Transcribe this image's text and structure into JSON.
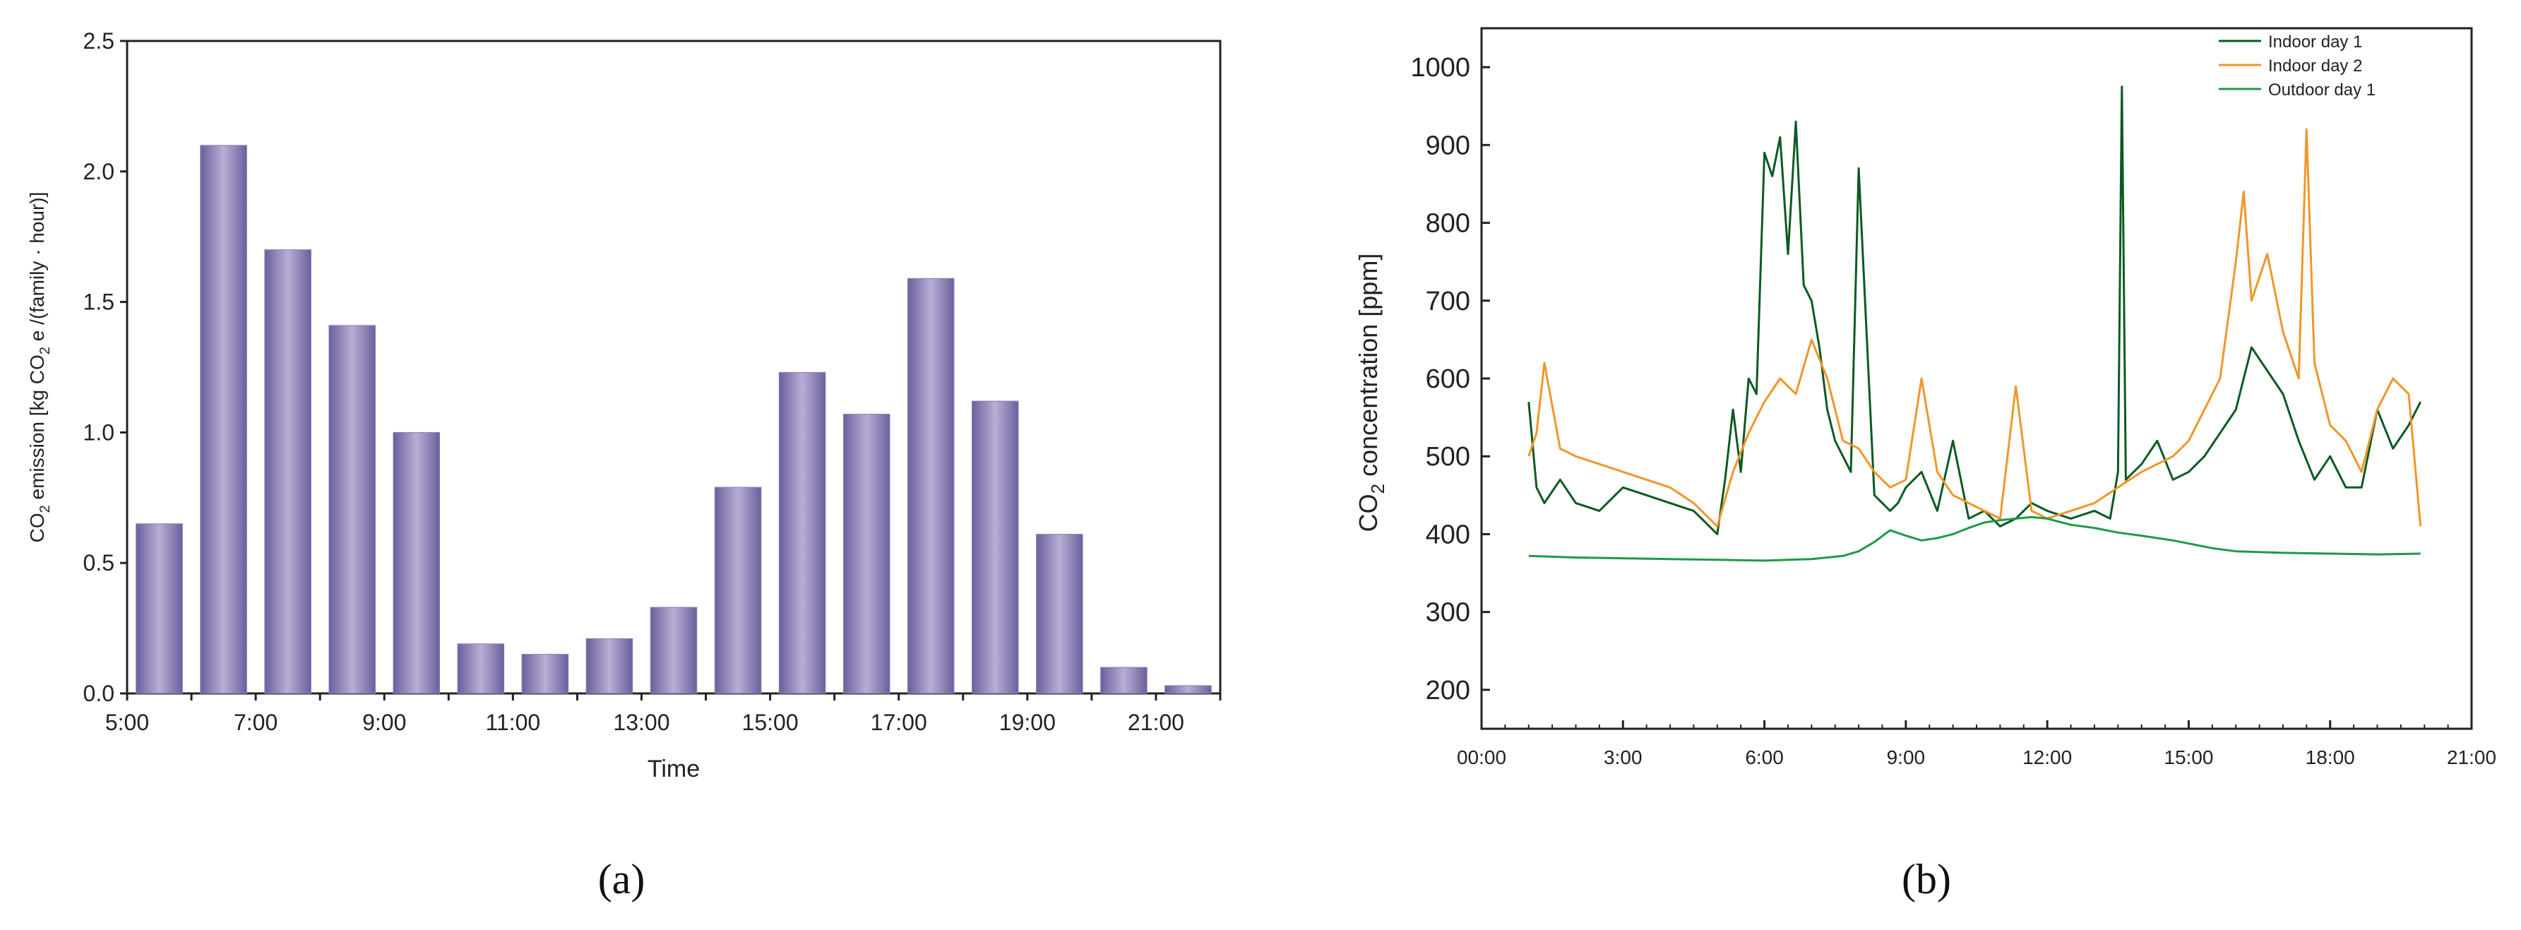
{
  "chart_data": [
    {
      "type": "bar",
      "panel_label": "(a)",
      "title": "",
      "xlabel": "Time",
      "ylabel_parts": {
        "before": "CO",
        "sub1": "2",
        "mid": " emission [kg CO",
        "sub2": "2",
        "after": " e /(family · hour)]"
      },
      "ylim": [
        0,
        2.5
      ],
      "yticks": [
        "0.0",
        "0.5",
        "1.0",
        "1.5",
        "2.0",
        "2.5"
      ],
      "xtick_labels": [
        "5:00",
        "7:00",
        "9:00",
        "11:00",
        "13:00",
        "15:00",
        "17:00",
        "19:00",
        "21:00"
      ],
      "categories": [
        "5:00",
        "6:00",
        "7:00",
        "8:00",
        "9:00",
        "10:00",
        "11:00",
        "12:00",
        "13:00",
        "14:00",
        "15:00",
        "16:00",
        "17:00",
        "18:00",
        "19:00",
        "20:00",
        "21:00"
      ],
      "values": [
        0.65,
        2.1,
        1.7,
        1.41,
        1.0,
        0.19,
        0.15,
        0.21,
        0.33,
        0.79,
        1.23,
        1.07,
        1.59,
        1.12,
        0.61,
        0.1,
        0.03
      ],
      "bar_color": "#8c7fb5",
      "grid": false
    },
    {
      "type": "line",
      "panel_label": "(b)",
      "title": "",
      "xlabel": "",
      "ylabel_parts": {
        "before": "CO",
        "sub": "2",
        "after": " concentration [ppm]"
      },
      "xlim": [
        "00:00",
        "21:00"
      ],
      "ylim": [
        150,
        1050
      ],
      "yticks": [
        "200",
        "300",
        "400",
        "500",
        "600",
        "700",
        "800",
        "900",
        "1000"
      ],
      "xticks": [
        "00:00",
        "3:00",
        "6:00",
        "9:00",
        "12:00",
        "15:00",
        "18:00",
        "21:00"
      ],
      "legend_position": "top-right",
      "grid": false,
      "series": [
        {
          "name": "Indoor day 1",
          "color": "#0b5a23",
          "x": [
            "01:00",
            "01:10",
            "01:20",
            "01:40",
            "02:00",
            "02:30",
            "03:00",
            "03:30",
            "04:00",
            "04:30",
            "04:50",
            "05:00",
            "05:10",
            "05:20",
            "05:30",
            "05:40",
            "05:50",
            "06:00",
            "06:10",
            "06:20",
            "06:30",
            "06:40",
            "06:50",
            "07:00",
            "07:10",
            "07:20",
            "07:30",
            "07:40",
            "07:50",
            "08:00",
            "08:20",
            "08:40",
            "08:50",
            "09:00",
            "09:20",
            "09:40",
            "10:00",
            "10:20",
            "10:40",
            "11:00",
            "11:20",
            "11:40",
            "12:00",
            "12:30",
            "13:00",
            "13:20",
            "13:30",
            "13:35",
            "13:40",
            "14:00",
            "14:20",
            "14:40",
            "15:00",
            "15:20",
            "15:40",
            "16:00",
            "16:10",
            "16:20",
            "16:40",
            "17:00",
            "17:20",
            "17:40",
            "18:00",
            "18:20",
            "18:40",
            "19:00",
            "19:20",
            "19:40",
            "19:55"
          ],
          "values": [
            570,
            460,
            440,
            470,
            440,
            430,
            460,
            450,
            440,
            430,
            410,
            400,
            470,
            560,
            480,
            600,
            580,
            890,
            860,
            910,
            760,
            930,
            720,
            700,
            640,
            560,
            520,
            500,
            480,
            870,
            450,
            430,
            440,
            460,
            480,
            430,
            520,
            420,
            430,
            410,
            420,
            440,
            430,
            420,
            430,
            420,
            480,
            975,
            470,
            490,
            520,
            470,
            480,
            500,
            530,
            560,
            600,
            640,
            610,
            580,
            520,
            470,
            500,
            460,
            460,
            560,
            510,
            540,
            570
          ]
        },
        {
          "name": "Indoor day 2",
          "color": "#f0962a",
          "x": [
            "01:00",
            "01:10",
            "01:20",
            "01:40",
            "02:00",
            "02:30",
            "03:00",
            "03:30",
            "04:00",
            "04:30",
            "04:50",
            "05:00",
            "05:20",
            "05:40",
            "06:00",
            "06:20",
            "06:40",
            "07:00",
            "07:20",
            "07:40",
            "08:00",
            "08:20",
            "08:40",
            "09:00",
            "09:20",
            "09:40",
            "10:00",
            "10:20",
            "10:40",
            "11:00",
            "11:20",
            "11:40",
            "12:00",
            "12:30",
            "13:00",
            "13:30",
            "14:00",
            "14:20",
            "14:40",
            "15:00",
            "15:20",
            "15:40",
            "16:00",
            "16:10",
            "16:20",
            "16:40",
            "17:00",
            "17:20",
            "17:30",
            "17:40",
            "18:00",
            "18:20",
            "18:40",
            "19:00",
            "19:20",
            "19:40",
            "19:55"
          ],
          "values": [
            500,
            530,
            620,
            510,
            500,
            490,
            480,
            470,
            460,
            440,
            420,
            410,
            480,
            530,
            570,
            600,
            580,
            650,
            600,
            520,
            510,
            480,
            460,
            470,
            600,
            480,
            450,
            440,
            430,
            420,
            590,
            430,
            420,
            430,
            440,
            460,
            480,
            490,
            500,
            520,
            560,
            600,
            750,
            840,
            700,
            760,
            660,
            600,
            920,
            620,
            540,
            520,
            480,
            560,
            600,
            580,
            410
          ]
        },
        {
          "name": "Outdoor day 1",
          "color": "#1d9a48",
          "x": [
            "01:00",
            "02:00",
            "03:00",
            "04:00",
            "05:00",
            "06:00",
            "07:00",
            "07:40",
            "08:00",
            "08:20",
            "08:40",
            "09:00",
            "09:20",
            "09:40",
            "10:00",
            "10:20",
            "10:40",
            "11:00",
            "11:20",
            "11:40",
            "12:00",
            "12:30",
            "13:00",
            "13:30",
            "14:00",
            "14:20",
            "14:40",
            "15:00",
            "15:30",
            "16:00",
            "17:00",
            "18:00",
            "19:00",
            "19:55"
          ],
          "values": [
            372,
            370,
            369,
            368,
            367,
            366,
            368,
            372,
            378,
            390,
            405,
            398,
            392,
            395,
            400,
            408,
            415,
            418,
            420,
            422,
            420,
            412,
            408,
            402,
            398,
            395,
            392,
            388,
            382,
            378,
            376,
            375,
            374,
            375
          ]
        }
      ]
    }
  ]
}
